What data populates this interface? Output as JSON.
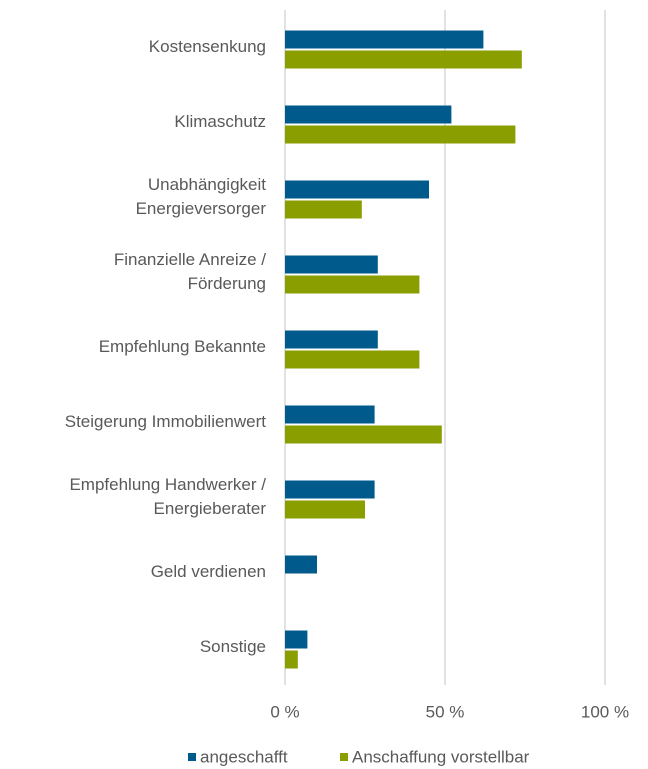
{
  "chart_data": {
    "type": "barh",
    "categories": [
      [
        "Kostensenkung"
      ],
      [
        "Klimaschutz"
      ],
      [
        "Unabhängigkeit",
        "Energieversorger"
      ],
      [
        "Finanzielle Anreize /",
        "Förderung"
      ],
      [
        "Empfehlung Bekannte"
      ],
      [
        "Steigerung Immobilienwert"
      ],
      [
        "Empfehlung Handwerker /",
        "Energieberater"
      ],
      [
        "Geld verdienen"
      ],
      [
        "Sonstige"
      ]
    ],
    "series": [
      {
        "name": "angeschafft",
        "color": "#005b8c",
        "values": [
          62,
          52,
          45,
          29,
          29,
          28,
          28,
          10,
          7
        ]
      },
      {
        "name": "Anschaffung vorstellbar",
        "color": "#8a9e00",
        "values": [
          74,
          72,
          24,
          42,
          42,
          49,
          25,
          null,
          4
        ]
      }
    ],
    "xlim": [
      0,
      100
    ],
    "xticks": [
      {
        "value": 0,
        "label": "0 %"
      },
      {
        "value": 50,
        "label": "50 %"
      },
      {
        "value": 100,
        "label": "100 %"
      }
    ],
    "grid": true,
    "legend": "bottom"
  }
}
